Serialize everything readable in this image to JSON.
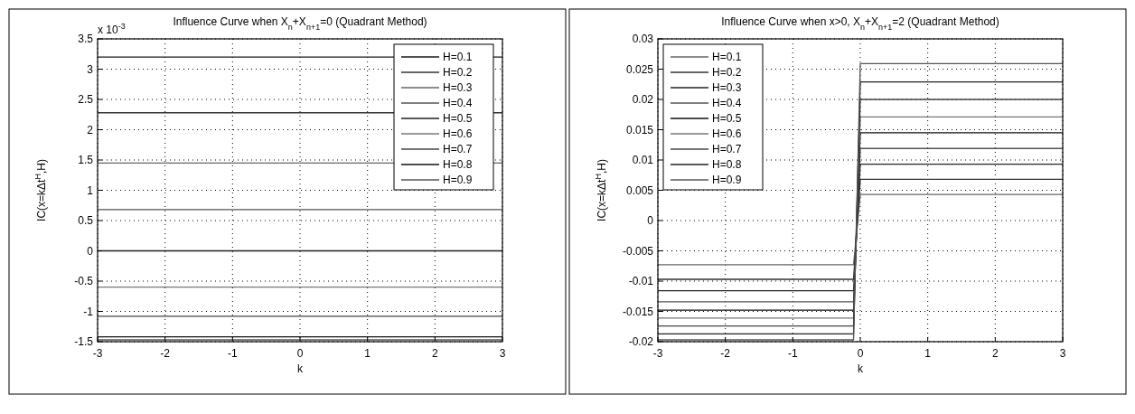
{
  "chart_data": [
    {
      "type": "line",
      "title": "Influence Curve when X$_{n}$+X$_{n+1}$=0 (Quadrant Method)",
      "xlabel": "k",
      "ylabel": "IC(x=kΔt$^{H}$,H)",
      "annotations": [
        "x 10$^{-3}$"
      ],
      "xlim": [
        -3,
        3
      ],
      "xticks": [
        -3,
        -2,
        -1,
        0,
        1,
        2,
        3
      ],
      "ylim": [
        -1.5,
        3.5
      ],
      "yticks": [
        -1.5,
        -1,
        -0.5,
        0,
        0.5,
        1,
        1.5,
        2,
        2.5,
        3,
        3.5
      ],
      "grid": true,
      "legend": "top right",
      "line_style": "solid",
      "x": [
        -3,
        3
      ],
      "series": [
        {
          "name": "H=0.1",
          "color": "#1a1a1a",
          "values": [
            3.2,
            3.2
          ]
        },
        {
          "name": "H=0.2",
          "color": "#333333",
          "values": [
            2.28,
            2.28
          ]
        },
        {
          "name": "H=0.3",
          "color": "#666666",
          "values": [
            1.45,
            1.45
          ]
        },
        {
          "name": "H=0.4",
          "color": "#555555",
          "values": [
            0.68,
            0.68
          ]
        },
        {
          "name": "H=0.5",
          "color": "#222222",
          "values": [
            0,
            0
          ]
        },
        {
          "name": "H=0.6",
          "color": "#777777",
          "values": [
            -0.6,
            -0.6
          ]
        },
        {
          "name": "H=0.7",
          "color": "#444444",
          "values": [
            -1.08,
            -1.08
          ]
        },
        {
          "name": "H=0.8",
          "color": "#111111",
          "values": [
            -1.42,
            -1.42
          ]
        },
        {
          "name": "H=0.9",
          "color": "#555555",
          "values": [
            -1.47,
            -1.47
          ]
        }
      ]
    },
    {
      "type": "line",
      "title": "Influence Curve when x>0, X$_{n}$+X$_{n+1}$=2 (Quadrant Method)",
      "xlabel": "k",
      "ylabel": "IC(x=kΔt$^{H}$,H)",
      "xlim": [
        -3,
        3
      ],
      "xticks": [
        -3,
        -2,
        -1,
        0,
        1,
        2,
        3
      ],
      "ylim": [
        -0.02,
        0.03
      ],
      "yticks": [
        -0.02,
        -0.015,
        -0.01,
        -0.005,
        0,
        0.005,
        0.01,
        0.015,
        0.02,
        0.025,
        0.03
      ],
      "grid": true,
      "legend": "top left",
      "line_style": "solid",
      "x": [
        -3,
        -0.1,
        0,
        3
      ],
      "series": [
        {
          "name": "H=0.1",
          "color": "#666666",
          "values": [
            -0.0073,
            -0.0073,
            0.0043,
            0.0043
          ]
        },
        {
          "name": "H=0.2",
          "color": "#333333",
          "values": [
            -0.0097,
            -0.0097,
            0.0068,
            0.0068
          ]
        },
        {
          "name": "H=0.3",
          "color": "#222222",
          "values": [
            -0.0116,
            -0.0116,
            0.0093,
            0.0093
          ]
        },
        {
          "name": "H=0.4",
          "color": "#555555",
          "values": [
            -0.0134,
            -0.0134,
            0.0119,
            0.0119
          ]
        },
        {
          "name": "H=0.5",
          "color": "#111111",
          "values": [
            -0.0148,
            -0.0148,
            0.0145,
            0.0145
          ]
        },
        {
          "name": "H=0.6",
          "color": "#777777",
          "values": [
            -0.0161,
            -0.0161,
            0.0171,
            0.0171
          ]
        },
        {
          "name": "H=0.7",
          "color": "#444444",
          "values": [
            -0.0174,
            -0.0174,
            0.02,
            0.02
          ]
        },
        {
          "name": "H=0.8",
          "color": "#222222",
          "values": [
            -0.0187,
            -0.0187,
            0.0229,
            0.0229
          ]
        },
        {
          "name": "H=0.9",
          "color": "#555555",
          "values": [
            -0.0197,
            -0.0197,
            0.0259,
            0.0259
          ]
        }
      ]
    }
  ]
}
